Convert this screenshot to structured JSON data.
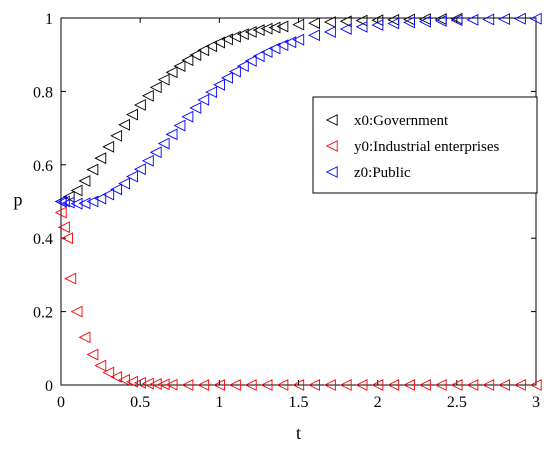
{
  "chart_data": {
    "type": "scatter",
    "xlabel": "t",
    "ylabel": "p",
    "xlim": [
      0,
      3
    ],
    "ylim": [
      0,
      1
    ],
    "x_ticks": [
      "0",
      "0.5",
      "1",
      "1.5",
      "2",
      "2.5",
      "3"
    ],
    "y_ticks": [
      "0",
      "0.2",
      "0.4",
      "0.6",
      "0.8",
      "1"
    ],
    "grid": false,
    "legend_position": "right",
    "marker": "left-pointing triangle (open)",
    "series": [
      {
        "name": "x0:Government",
        "color": "#000000",
        "x": [
          0,
          0.05,
          0.1,
          0.15,
          0.2,
          0.25,
          0.3,
          0.35,
          0.4,
          0.45,
          0.5,
          0.55,
          0.6,
          0.65,
          0.7,
          0.75,
          0.8,
          0.85,
          0.9,
          0.95,
          1.0,
          1.05,
          1.1,
          1.15,
          1.2,
          1.25,
          1.3,
          1.35,
          1.4,
          1.5,
          1.6,
          1.7,
          1.8,
          1.9,
          2.0,
          2.1,
          2.2,
          2.3,
          2.4,
          2.5
        ],
        "y": [
          0.5,
          0.513,
          0.53,
          0.556,
          0.587,
          0.618,
          0.649,
          0.679,
          0.709,
          0.737,
          0.763,
          0.788,
          0.811,
          0.832,
          0.852,
          0.869,
          0.885,
          0.899,
          0.912,
          0.923,
          0.933,
          0.942,
          0.949,
          0.956,
          0.962,
          0.967,
          0.971,
          0.974,
          0.977,
          0.982,
          0.986,
          0.989,
          0.991,
          0.993,
          0.994,
          0.995,
          0.996,
          0.997,
          0.997,
          0.998
        ]
      },
      {
        "name": "y0:Industrial enterprises",
        "color": "#ff0000",
        "x": [
          0,
          0.02,
          0.04,
          0.06,
          0.1,
          0.15,
          0.2,
          0.25,
          0.3,
          0.35,
          0.4,
          0.45,
          0.5,
          0.55,
          0.6,
          0.65,
          0.7,
          0.8,
          0.9,
          1.0,
          1.1,
          1.2,
          1.3,
          1.4,
          1.5,
          1.6,
          1.7,
          1.8,
          1.9,
          2.0,
          2.1,
          2.2,
          2.3,
          2.4,
          2.5,
          2.6,
          2.7,
          2.8,
          2.9,
          3.0
        ],
        "y": [
          0.47,
          0.43,
          0.4,
          0.29,
          0.2,
          0.13,
          0.083,
          0.053,
          0.034,
          0.022,
          0.014,
          0.009,
          0.006,
          0.004,
          0.003,
          0.002,
          0.001,
          0.0,
          0.0,
          0.0,
          0.0,
          0.0,
          0.0,
          0.0,
          0.0,
          0.0,
          0.0,
          0.0,
          0.0,
          0.0,
          0.0,
          0.0,
          0.0,
          0.0,
          0.0,
          0.0,
          0.0,
          0.0,
          0.0,
          0.0
        ]
      },
      {
        "name": "z0:Public",
        "color": "#0000ff",
        "x": [
          0,
          0.02,
          0.05,
          0.1,
          0.15,
          0.2,
          0.25,
          0.3,
          0.35,
          0.4,
          0.45,
          0.5,
          0.55,
          0.6,
          0.65,
          0.7,
          0.75,
          0.8,
          0.85,
          0.9,
          0.95,
          1.0,
          1.05,
          1.1,
          1.15,
          1.2,
          1.25,
          1.3,
          1.35,
          1.4,
          1.45,
          1.5,
          1.6,
          1.7,
          1.8,
          1.9,
          2.0,
          2.1,
          2.2,
          2.3,
          2.4,
          2.5,
          2.6,
          2.7,
          2.8,
          2.9,
          3.0
        ],
        "y": [
          0.5,
          0.5,
          0.497,
          0.494,
          0.495,
          0.5,
          0.508,
          0.519,
          0.533,
          0.549,
          0.568,
          0.588,
          0.611,
          0.634,
          0.658,
          0.683,
          0.707,
          0.731,
          0.755,
          0.777,
          0.798,
          0.818,
          0.837,
          0.854,
          0.869,
          0.883,
          0.896,
          0.907,
          0.917,
          0.926,
          0.934,
          0.941,
          0.953,
          0.962,
          0.97,
          0.976,
          0.981,
          0.985,
          0.988,
          0.99,
          0.992,
          0.994,
          0.995,
          0.996,
          0.997,
          0.998,
          0.998
        ]
      }
    ]
  }
}
